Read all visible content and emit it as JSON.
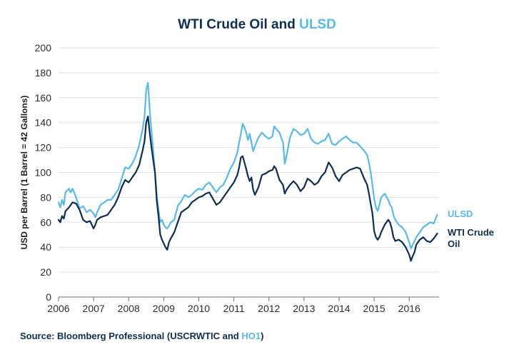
{
  "chart_data": {
    "type": "line",
    "title": "WTI Crude Oil and ULSD",
    "title_parts": [
      {
        "text": "WTI Crude Oil and ",
        "series": "WTI Crude Oil"
      },
      {
        "text": "ULSD",
        "series": "ULSD"
      }
    ],
    "xlabel": "",
    "ylabel": "USD per Barrel (1 Barrel = 42 Gallons)",
    "xlim": [
      2006,
      2016.85
    ],
    "ylim": [
      0,
      200
    ],
    "x_ticks": [
      2006,
      2007,
      2008,
      2009,
      2010,
      2011,
      2012,
      2013,
      2014,
      2015,
      2016
    ],
    "y_ticks": [
      0,
      20,
      40,
      60,
      80,
      100,
      120,
      140,
      160,
      180,
      200
    ],
    "grid": true,
    "legend_position": "right",
    "source_parts": [
      {
        "text": "Source: Bloomberg Professional (USCRWTIC and ",
        "series": ""
      },
      {
        "text": "HO1",
        "series": "ULSD"
      },
      {
        "text": ")",
        "series": ""
      }
    ],
    "series": [
      {
        "name": "ULSD",
        "legend_label": "ULSD",
        "color": "#5cb8e6",
        "x": [
          2006.0,
          2006.05,
          2006.1,
          2006.15,
          2006.2,
          2006.3,
          2006.35,
          2006.4,
          2006.5,
          2006.6,
          2006.7,
          2006.8,
          2006.9,
          2007.0,
          2007.05,
          2007.1,
          2007.2,
          2007.3,
          2007.4,
          2007.5,
          2007.6,
          2007.7,
          2007.8,
          2007.9,
          2008.0,
          2008.1,
          2008.2,
          2008.3,
          2008.4,
          2008.45,
          2008.5,
          2008.55,
          2008.6,
          2008.65,
          2008.7,
          2008.75,
          2008.8,
          2008.85,
          2008.9,
          2008.95,
          2009.0,
          2009.05,
          2009.1,
          2009.15,
          2009.2,
          2009.3,
          2009.4,
          2009.5,
          2009.6,
          2009.7,
          2009.8,
          2009.9,
          2010.0,
          2010.1,
          2010.2,
          2010.3,
          2010.4,
          2010.5,
          2010.6,
          2010.7,
          2010.8,
          2010.9,
          2011.0,
          2011.1,
          2011.15,
          2011.2,
          2011.25,
          2011.3,
          2011.35,
          2011.4,
          2011.45,
          2011.5,
          2011.55,
          2011.6,
          2011.7,
          2011.8,
          2011.9,
          2012.0,
          2012.1,
          2012.15,
          2012.2,
          2012.3,
          2012.4,
          2012.45,
          2012.5,
          2012.6,
          2012.7,
          2012.8,
          2012.9,
          2013.0,
          2013.1,
          2013.2,
          2013.3,
          2013.4,
          2013.5,
          2013.6,
          2013.7,
          2013.8,
          2013.9,
          2014.0,
          2014.1,
          2014.2,
          2014.3,
          2014.4,
          2014.5,
          2014.6,
          2014.7,
          2014.8,
          2014.85,
          2014.9,
          2014.95,
          2015.0,
          2015.05,
          2015.1,
          2015.15,
          2015.2,
          2015.3,
          2015.4,
          2015.45,
          2015.5,
          2015.55,
          2015.6,
          2015.7,
          2015.8,
          2015.9,
          2016.0,
          2016.05,
          2016.1,
          2016.15,
          2016.2,
          2016.3,
          2016.4,
          2016.5,
          2016.6,
          2016.7,
          2016.8
        ],
        "values": [
          76,
          72,
          78,
          74,
          84,
          87,
          84,
          87,
          80,
          71,
          73,
          68,
          70,
          67,
          64,
          68,
          74,
          76,
          78,
          78,
          82,
          86,
          95,
          104,
          103,
          107,
          113,
          122,
          135,
          145,
          166,
          172,
          150,
          133,
          118,
          100,
          82,
          70,
          60,
          62,
          58,
          56,
          55,
          57,
          60,
          62,
          73,
          77,
          82,
          80,
          82,
          85,
          87,
          86,
          90,
          92,
          88,
          84,
          88,
          90,
          96,
          103,
          108,
          116,
          124,
          131,
          139,
          136,
          132,
          126,
          131,
          124,
          117,
          121,
          128,
          132,
          129,
          127,
          129,
          137,
          135,
          132,
          124,
          107,
          113,
          128,
          135,
          133,
          130,
          131,
          135,
          127,
          124,
          123,
          125,
          126,
          131,
          123,
          122,
          125,
          127,
          129,
          126,
          124,
          124,
          121,
          118,
          114,
          108,
          100,
          90,
          79,
          72,
          69,
          74,
          80,
          83,
          78,
          74,
          72,
          66,
          62,
          58,
          56,
          52,
          44,
          39,
          42,
          45,
          48,
          52,
          56,
          58,
          60,
          59,
          66
        ]
      },
      {
        "name": "WTI Crude Oil",
        "legend_label": "WTI Crude Oil",
        "color": "#0d2e4f",
        "x": [
          2006.0,
          2006.05,
          2006.1,
          2006.15,
          2006.2,
          2006.3,
          2006.35,
          2006.4,
          2006.5,
          2006.6,
          2006.7,
          2006.8,
          2006.9,
          2007.0,
          2007.05,
          2007.1,
          2007.2,
          2007.3,
          2007.4,
          2007.5,
          2007.6,
          2007.7,
          2007.8,
          2007.9,
          2008.0,
          2008.1,
          2008.2,
          2008.3,
          2008.4,
          2008.45,
          2008.5,
          2008.55,
          2008.6,
          2008.65,
          2008.7,
          2008.75,
          2008.8,
          2008.85,
          2008.9,
          2008.95,
          2009.0,
          2009.05,
          2009.1,
          2009.15,
          2009.2,
          2009.3,
          2009.4,
          2009.5,
          2009.6,
          2009.7,
          2009.8,
          2009.9,
          2010.0,
          2010.1,
          2010.2,
          2010.3,
          2010.4,
          2010.5,
          2010.6,
          2010.7,
          2010.8,
          2010.9,
          2011.0,
          2011.1,
          2011.15,
          2011.2,
          2011.25,
          2011.3,
          2011.35,
          2011.4,
          2011.45,
          2011.5,
          2011.55,
          2011.6,
          2011.7,
          2011.8,
          2011.9,
          2012.0,
          2012.1,
          2012.15,
          2012.2,
          2012.3,
          2012.4,
          2012.45,
          2012.5,
          2012.6,
          2012.7,
          2012.8,
          2012.9,
          2013.0,
          2013.1,
          2013.2,
          2013.3,
          2013.4,
          2013.5,
          2013.6,
          2013.7,
          2013.8,
          2013.9,
          2014.0,
          2014.1,
          2014.2,
          2014.3,
          2014.4,
          2014.5,
          2014.6,
          2014.7,
          2014.8,
          2014.85,
          2014.9,
          2014.95,
          2015.0,
          2015.05,
          2015.1,
          2015.15,
          2015.2,
          2015.3,
          2015.4,
          2015.45,
          2015.5,
          2015.55,
          2015.6,
          2015.7,
          2015.8,
          2015.9,
          2016.0,
          2016.05,
          2016.1,
          2016.15,
          2016.2,
          2016.3,
          2016.4,
          2016.5,
          2016.6,
          2016.7,
          2016.8
        ],
        "values": [
          62,
          60,
          65,
          63,
          69,
          72,
          74,
          76,
          75,
          70,
          62,
          60,
          61,
          55,
          58,
          62,
          64,
          65,
          66,
          70,
          74,
          80,
          88,
          94,
          92,
          96,
          100,
          106,
          118,
          125,
          140,
          145,
          132,
          120,
          110,
          100,
          78,
          65,
          50,
          46,
          43,
          40,
          38,
          44,
          47,
          52,
          60,
          68,
          70,
          72,
          76,
          78,
          80,
          81,
          83,
          84,
          79,
          74,
          76,
          80,
          84,
          88,
          92,
          98,
          104,
          112,
          113,
          108,
          103,
          97,
          93,
          96,
          86,
          82,
          88,
          98,
          99,
          101,
          102,
          105,
          103,
          94,
          90,
          83,
          86,
          90,
          93,
          90,
          85,
          88,
          95,
          93,
          90,
          92,
          97,
          100,
          108,
          104,
          97,
          93,
          98,
          100,
          102,
          103,
          104,
          103,
          96,
          90,
          83,
          75,
          67,
          53,
          48,
          46,
          48,
          52,
          58,
          62,
          60,
          55,
          48,
          45,
          46,
          44,
          40,
          34,
          29,
          33,
          36,
          42,
          46,
          48,
          45,
          44,
          47,
          51
        ]
      }
    ]
  }
}
